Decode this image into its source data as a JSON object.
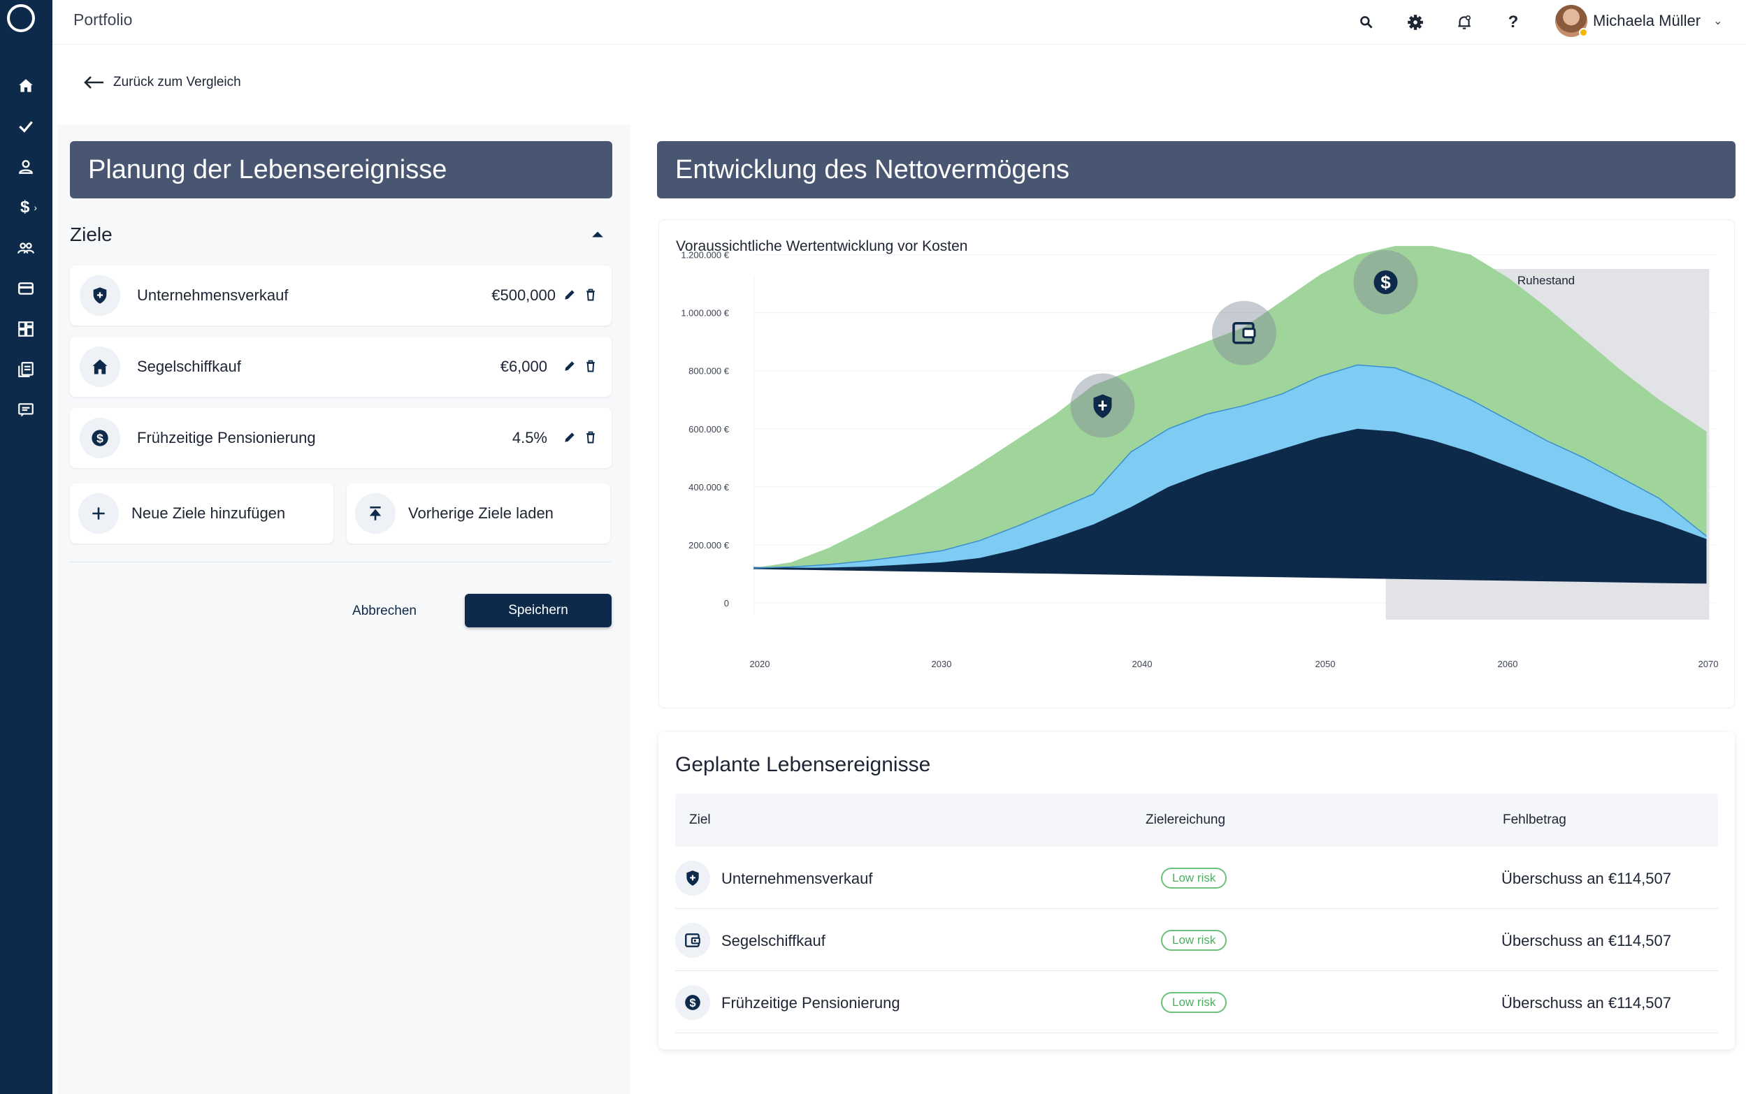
{
  "app": {
    "title": "Portfolio"
  },
  "user": {
    "name": "Michaela Müller"
  },
  "back_link": {
    "label": "Zurück zum Vergleich"
  },
  "left_panel": {
    "title": "Planung der Lebensereignisse",
    "section_title": "Ziele",
    "goals": [
      {
        "name": "Unternehmensverkauf",
        "value": "€500,000",
        "icon": "shield-icon"
      },
      {
        "name": "Segelschiffkauf",
        "value": "€6,000",
        "icon": "home-icon"
      },
      {
        "name": "Frühzeitige Pensionierung",
        "value": "4.5%",
        "icon": "dollar-icon"
      }
    ],
    "actions": {
      "add_label": "Neue Ziele hinzufügen",
      "load_label": "Vorherige Ziele laden"
    },
    "cancel_label": "Abbrechen",
    "save_label": "Speichern"
  },
  "right_panel": {
    "title": "Entwicklung des Nettovermögens",
    "chart_subtitle": "Voraussichtliche Wertentwicklung vor Kosten"
  },
  "chart_data": {
    "type": "area",
    "title": "Voraussichtliche Wertentwicklung vor Kosten",
    "xlabel": "",
    "ylabel": "",
    "x_ticks": [
      "2020",
      "2030",
      "2040",
      "2050",
      "2060",
      "2070"
    ],
    "y_ticks": [
      "0",
      "200.000 €",
      "400.000 €",
      "600.000 €",
      "800.000 €",
      "1.000.000 €",
      "1.200.000 €"
    ],
    "xlim": [
      2020,
      2071
    ],
    "ylim": [
      0,
      1300000
    ],
    "grid": true,
    "x": [
      2020,
      2022,
      2024,
      2026,
      2028,
      2030,
      2032,
      2034,
      2036,
      2038,
      2040,
      2042,
      2044,
      2046,
      2048,
      2050,
      2052,
      2054,
      2056,
      2058,
      2060,
      2062,
      2064,
      2066,
      2068,
      2070.5
    ],
    "series": [
      {
        "name": "",
        "color": "#9fd49a",
        "values": [
          120000,
          140000,
          190000,
          255000,
          325000,
          400000,
          480000,
          565000,
          650000,
          750000,
          800000,
          850000,
          900000,
          950000,
          1040000,
          1130000,
          1200000,
          1230000,
          1230000,
          1200000,
          1120000,
          1020000,
          910000,
          800000,
          700000,
          590000
        ]
      },
      {
        "name": "",
        "color": "#7ecbf3",
        "values": [
          120000,
          124000,
          132000,
          145000,
          162000,
          180000,
          215000,
          265000,
          320000,
          375000,
          520000,
          600000,
          650000,
          680000,
          720000,
          780000,
          820000,
          810000,
          760000,
          700000,
          630000,
          560000,
          500000,
          430000,
          360000,
          230000
        ]
      },
      {
        "name": "",
        "color": "#0e2a4a",
        "values": [
          120000,
          120000,
          122000,
          125000,
          132000,
          140000,
          155000,
          185000,
          225000,
          270000,
          330000,
          400000,
          450000,
          490000,
          530000,
          570000,
          600000,
          590000,
          560000,
          520000,
          470000,
          420000,
          370000,
          320000,
          280000,
          220000
        ]
      },
      {
        "name": "",
        "color": "#0e2a4a",
        "values": [
          120000,
          118000,
          116000,
          114000,
          112000,
          110000,
          108000,
          106000,
          104000,
          102000,
          100000,
          98000,
          96000,
          94000,
          92000,
          90000,
          88000,
          86000,
          84000,
          82000,
          80000,
          78000,
          76000,
          74000,
          72000,
          70000
        ]
      }
    ],
    "shaded_region": {
      "label": "Ruhestand",
      "x_start": 2053.5,
      "x_end": 2070.5,
      "color": "#e1e3e7"
    },
    "markers": [
      {
        "x": 2038.5,
        "y": 680000,
        "icon": "shield-icon"
      },
      {
        "x": 2046,
        "y": 930000,
        "icon": "wallet-icon"
      },
      {
        "x": 2053.5,
        "y": 1105000,
        "icon": "dollar-icon"
      }
    ]
  },
  "events_table": {
    "title": "Geplante Lebensereignisse",
    "columns": [
      "Ziel",
      "Zielereichung",
      "Fehlbetrag"
    ],
    "rows": [
      {
        "name": "Unternehmensverkauf",
        "status": "Low risk",
        "shortfall": "Überschuss an €114,507",
        "icon": "shield-icon"
      },
      {
        "name": "Segelschiffkauf",
        "status": "Low risk",
        "shortfall": "Überschuss an €114,507",
        "icon": "wallet-icon"
      },
      {
        "name": "Frühzeitige Pensionierung",
        "status": "Low risk",
        "shortfall": "Überschuss an €114,507",
        "icon": "dollar-icon"
      }
    ]
  },
  "colors": {
    "brand_navy": "#0e2a4a",
    "header_slate": "#485671",
    "area_green": "#9fd49a",
    "area_blue": "#7ecbf3",
    "risk_green": "#4caf60"
  }
}
